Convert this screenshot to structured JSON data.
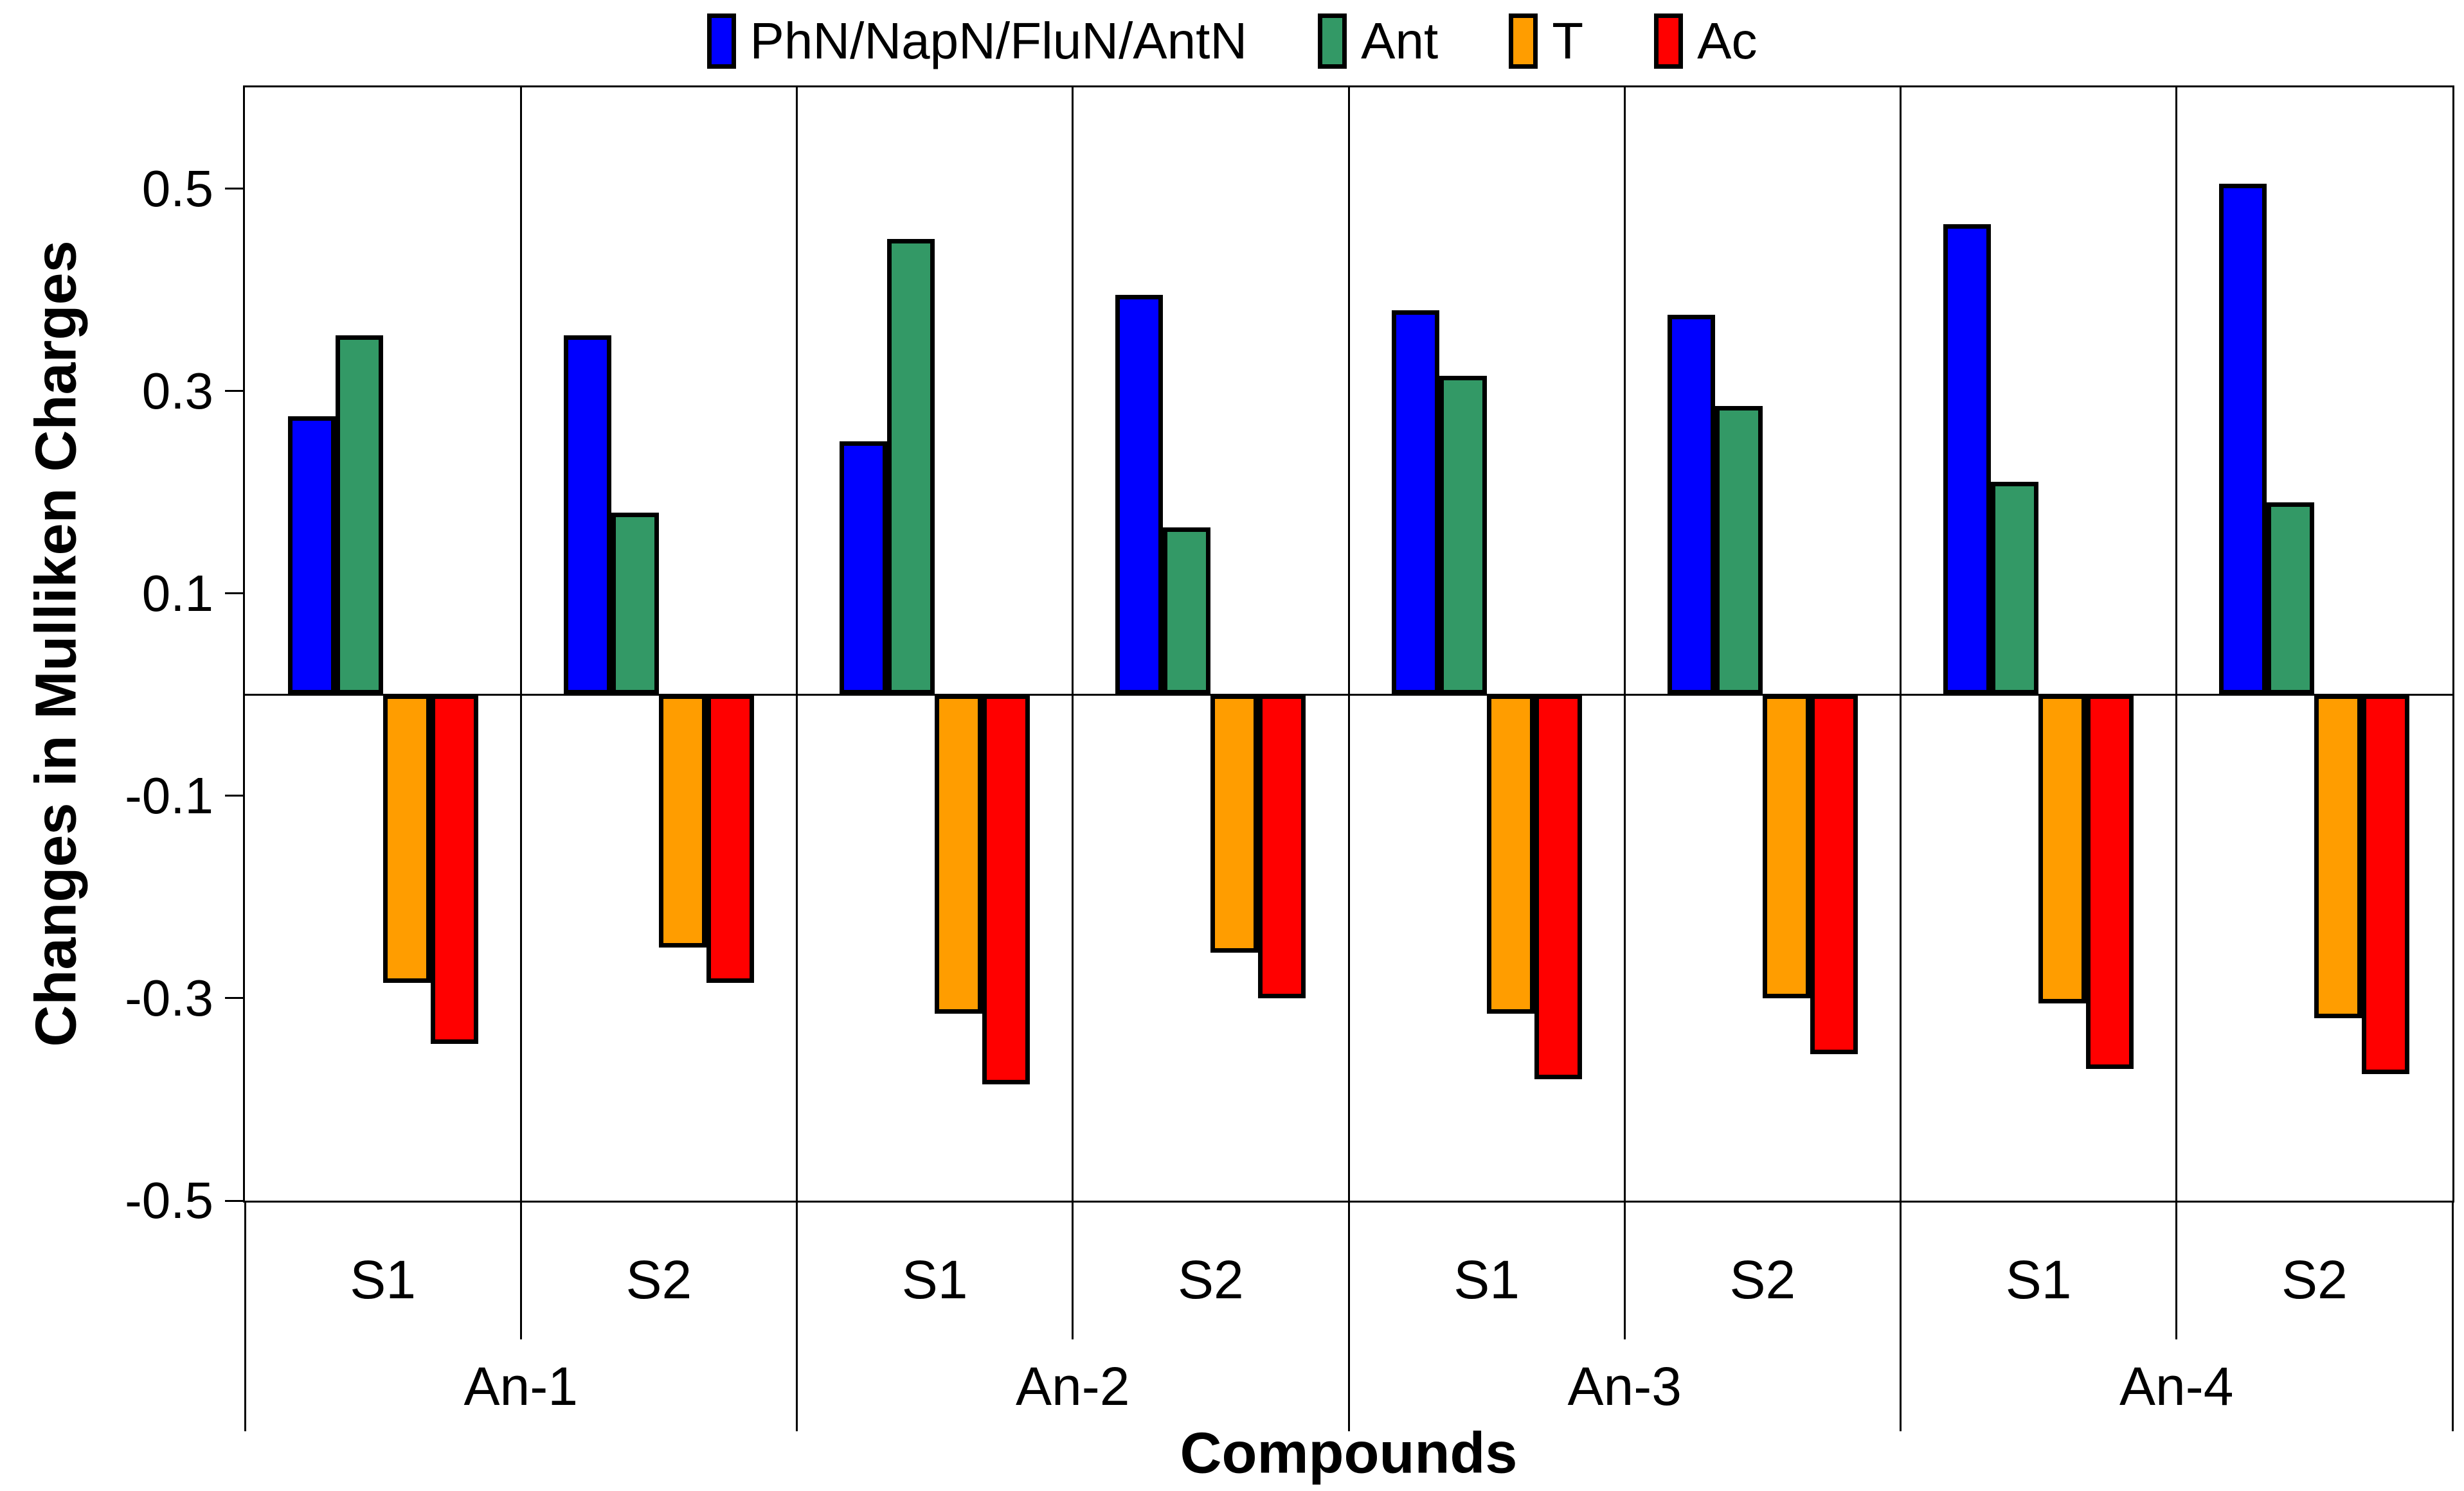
{
  "legend": {
    "position": "top-center"
  },
  "chart_data": {
    "type": "bar",
    "title": "",
    "xlabel": "Compounds",
    "ylabel": "Changes in Mulliken Charges",
    "ylim": [
      -0.5,
      0.6
    ],
    "ytick_labels": [
      "0.5",
      "0.3",
      "0.1",
      "-0.1",
      "-0.3",
      "-0.5"
    ],
    "ytick_values": [
      0.5,
      0.3,
      0.1,
      -0.1,
      -0.3,
      -0.5
    ],
    "groups": [
      "An-1",
      "An-2",
      "An-3",
      "An-4"
    ],
    "subgroup_labels": [
      "S1",
      "S2"
    ],
    "categories": [
      "An-1 S1",
      "An-1 S2",
      "An-2 S1",
      "An-2 S2",
      "An-3 S1",
      "An-3 S2",
      "An-4 S1",
      "An-4 S2"
    ],
    "series": [
      {
        "name": "PhN/NapN/FluN/AntN",
        "color": "#0000FF",
        "values": [
          0.275,
          0.355,
          0.25,
          0.395,
          0.38,
          0.375,
          0.465,
          0.505
        ]
      },
      {
        "name": "Ant",
        "color": "#339966",
        "values": [
          0.355,
          0.18,
          0.45,
          0.165,
          0.315,
          0.285,
          0.21,
          0.19
        ]
      },
      {
        "name": "T",
        "color": "#FF9D00",
        "values": [
          -0.285,
          -0.25,
          -0.315,
          -0.255,
          -0.315,
          -0.3,
          -0.305,
          -0.32
        ]
      },
      {
        "name": "Ac",
        "color": "#FF0000",
        "values": [
          -0.345,
          -0.285,
          -0.385,
          -0.3,
          -0.38,
          -0.355,
          -0.37,
          -0.375
        ]
      }
    ],
    "grid": {
      "horizontal_gridlines": false,
      "vertical_separators": true,
      "zero_line": true
    },
    "legend_position": "top",
    "bar_border_color": "#000000",
    "axis_color": "#000000",
    "background_color": "#FFFFFF"
  }
}
